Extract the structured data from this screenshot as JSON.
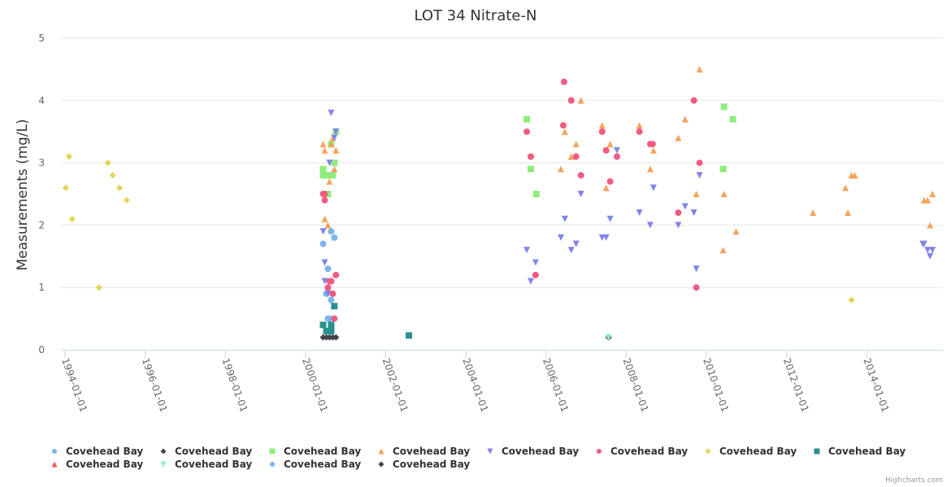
{
  "chart_data": {
    "type": "scatter",
    "title": "LOT 34 Nitrate-N",
    "xlabel": "",
    "ylabel": "Measurements (mg/L)",
    "x_unit": "decimal year",
    "xlim": [
      1993.9,
      2015.9
    ],
    "ylim": [
      0,
      5
    ],
    "y_ticks": [
      "0",
      "1",
      "2",
      "3",
      "4",
      "5"
    ],
    "x_ticks": [
      {
        "value": 1994,
        "label": "1994-01-01"
      },
      {
        "value": 1996,
        "label": "1996-01-01"
      },
      {
        "value": 1998,
        "label": "1998-01-01"
      },
      {
        "value": 2000,
        "label": "2000-01-01"
      },
      {
        "value": 2002,
        "label": "2002-01-01"
      },
      {
        "value": 2004,
        "label": "2004-01-01"
      },
      {
        "value": 2006,
        "label": "2006-01-01"
      },
      {
        "value": 2008,
        "label": "2008-01-01"
      },
      {
        "value": 2010,
        "label": "2010-01-01"
      },
      {
        "value": 2012,
        "label": "2012-01-01"
      },
      {
        "value": 2014,
        "label": "2014-01-01"
      }
    ],
    "grid": true,
    "legend_placement": "bottom",
    "series": [
      {
        "name": "Covehead Bay",
        "color": "#7cb5ec",
        "symbol": "circle",
        "points": [
          [
            2000.44,
            1.7
          ],
          [
            2000.64,
            1.9
          ],
          [
            2000.72,
            1.8
          ],
          [
            2000.56,
            1.3
          ],
          [
            2000.52,
            0.9
          ],
          [
            2000.64,
            0.8
          ],
          [
            2000.56,
            0.5
          ],
          [
            2000.6,
            0.5
          ]
        ]
      },
      {
        "name": "Covehead Bay",
        "color": "#434348",
        "symbol": "diamond",
        "points": [
          [
            2000.44,
            0.2
          ],
          [
            2000.52,
            0.2
          ],
          [
            2000.6,
            0.2
          ],
          [
            2000.68,
            0.2
          ],
          [
            2000.76,
            0.2
          ],
          [
            2007.56,
            0.2
          ]
        ]
      },
      {
        "name": "Covehead Bay",
        "color": "#90ed7d",
        "symbol": "square",
        "points": [
          [
            2000.76,
            3.5
          ],
          [
            2000.64,
            3.3
          ],
          [
            2000.72,
            3.0
          ],
          [
            2000.44,
            2.9
          ],
          [
            2000.44,
            2.8
          ],
          [
            2000.52,
            2.8
          ],
          [
            2000.6,
            2.8
          ],
          [
            2000.68,
            2.8
          ],
          [
            2000.56,
            2.5
          ],
          [
            2005.52,
            3.7
          ],
          [
            2005.62,
            2.9
          ],
          [
            2005.76,
            2.5
          ],
          [
            2010.44,
            3.9
          ],
          [
            2010.66,
            3.7
          ],
          [
            2010.42,
            2.9
          ]
        ]
      },
      {
        "name": "Covehead Bay",
        "color": "#f7a35c",
        "symbol": "triangle",
        "points": [
          [
            2000.68,
            3.4
          ],
          [
            2000.44,
            3.3
          ],
          [
            2000.64,
            3.3
          ],
          [
            2000.48,
            3.2
          ],
          [
            2000.76,
            3.2
          ],
          [
            2000.72,
            2.9
          ],
          [
            2000.6,
            2.7
          ],
          [
            2000.48,
            2.1
          ],
          [
            2000.56,
            2.0
          ],
          [
            2006.37,
            2.9
          ],
          [
            2006.47,
            3.5
          ],
          [
            2006.63,
            3.1
          ],
          [
            2006.75,
            3.3
          ],
          [
            2006.87,
            4.0
          ],
          [
            2007.4,
            3.6
          ],
          [
            2007.5,
            2.6
          ],
          [
            2007.6,
            3.3
          ],
          [
            2008.33,
            3.6
          ],
          [
            2008.6,
            2.9
          ],
          [
            2008.68,
            3.2
          ],
          [
            2009.3,
            3.4
          ],
          [
            2009.47,
            3.7
          ],
          [
            2009.75,
            2.5
          ],
          [
            2009.83,
            4.5
          ],
          [
            2010.42,
            1.6
          ],
          [
            2010.44,
            2.5
          ],
          [
            2010.74,
            1.9
          ],
          [
            2012.66,
            2.2
          ],
          [
            2013.47,
            2.6
          ],
          [
            2013.53,
            2.2
          ],
          [
            2013.62,
            2.8
          ],
          [
            2013.7,
            2.8
          ],
          [
            2015.43,
            2.4
          ],
          [
            2015.52,
            2.4
          ],
          [
            2015.58,
            2.0
          ],
          [
            2015.64,
            2.5
          ]
        ]
      },
      {
        "name": "Covehead Bay",
        "color": "#8085e9",
        "symbol": "triangle-down",
        "points": [
          [
            2000.64,
            3.8
          ],
          [
            2000.76,
            3.5
          ],
          [
            2000.72,
            3.4
          ],
          [
            2000.6,
            3.0
          ],
          [
            2000.44,
            1.9
          ],
          [
            2000.48,
            1.4
          ],
          [
            2000.48,
            1.1
          ],
          [
            2000.56,
            0.9
          ],
          [
            2005.52,
            1.6
          ],
          [
            2005.62,
            1.1
          ],
          [
            2005.74,
            1.4
          ],
          [
            2006.37,
            1.8
          ],
          [
            2006.47,
            2.1
          ],
          [
            2006.63,
            1.6
          ],
          [
            2006.75,
            1.7
          ],
          [
            2006.87,
            2.5
          ],
          [
            2007.4,
            1.8
          ],
          [
            2007.5,
            1.8
          ],
          [
            2007.6,
            2.1
          ],
          [
            2007.77,
            3.2
          ],
          [
            2008.33,
            2.2
          ],
          [
            2008.6,
            2.0
          ],
          [
            2008.68,
            2.6
          ],
          [
            2009.3,
            2.0
          ],
          [
            2009.47,
            2.3
          ],
          [
            2009.69,
            2.2
          ],
          [
            2009.75,
            1.3
          ],
          [
            2009.83,
            2.8
          ],
          [
            2015.4,
            1.7
          ],
          [
            2015.43,
            1.7
          ],
          [
            2015.52,
            1.6
          ],
          [
            2015.58,
            1.5
          ],
          [
            2015.64,
            1.6
          ]
        ]
      },
      {
        "name": "Covehead Bay",
        "color": "#f15c80",
        "symbol": "circle",
        "points": [
          [
            2000.44,
            2.5
          ],
          [
            2000.48,
            2.5
          ],
          [
            2000.48,
            2.4
          ],
          [
            2000.76,
            1.2
          ],
          [
            2000.6,
            1.1
          ],
          [
            2000.64,
            1.1
          ],
          [
            2000.56,
            1.0
          ],
          [
            2000.68,
            0.9
          ],
          [
            2000.72,
            0.5
          ],
          [
            2005.52,
            3.5
          ],
          [
            2005.62,
            3.1
          ],
          [
            2005.74,
            1.2
          ],
          [
            2006.43,
            3.6
          ],
          [
            2006.45,
            4.3
          ],
          [
            2006.63,
            4.0
          ],
          [
            2006.75,
            3.1
          ],
          [
            2006.87,
            2.8
          ],
          [
            2007.4,
            3.5
          ],
          [
            2007.5,
            3.2
          ],
          [
            2007.6,
            2.7
          ],
          [
            2007.77,
            3.1
          ],
          [
            2008.33,
            3.5
          ],
          [
            2008.6,
            3.3
          ],
          [
            2008.66,
            3.3
          ],
          [
            2009.3,
            2.2
          ],
          [
            2009.69,
            4.0
          ],
          [
            2009.75,
            1.0
          ],
          [
            2009.83,
            3.0
          ]
        ]
      },
      {
        "name": "Covehead Bay",
        "color": "#e4d354",
        "symbol": "diamond",
        "points": [
          [
            1994.02,
            2.6
          ],
          [
            1994.1,
            3.1
          ],
          [
            1994.18,
            2.1
          ],
          [
            1994.85,
            1.0
          ],
          [
            1995.07,
            3.0
          ],
          [
            1995.19,
            2.8
          ],
          [
            1995.36,
            2.6
          ],
          [
            1995.54,
            2.4
          ],
          [
            2013.62,
            0.8
          ]
        ]
      },
      {
        "name": "Covehead Bay",
        "color": "#2b908f",
        "symbol": "square",
        "points": [
          [
            2000.72,
            0.7
          ],
          [
            2000.44,
            0.4
          ],
          [
            2000.64,
            0.4
          ],
          [
            2000.52,
            0.3
          ],
          [
            2000.64,
            0.3
          ],
          [
            2002.58,
            0.23
          ]
        ]
      },
      {
        "name": "Covehead Bay",
        "color": "#f45b5b",
        "symbol": "triangle",
        "points": []
      },
      {
        "name": "Covehead Bay",
        "color": "#91e8e1",
        "symbol": "triangle-down",
        "points": [
          [
            2007.56,
            0.2
          ]
        ]
      },
      {
        "name": "Covehead Bay",
        "color": "#7cb5ec",
        "symbol": "circle",
        "points": []
      },
      {
        "name": "Covehead Bay",
        "color": "#434348",
        "symbol": "diamond",
        "points": []
      }
    ]
  },
  "credits": "Highcharts.com"
}
